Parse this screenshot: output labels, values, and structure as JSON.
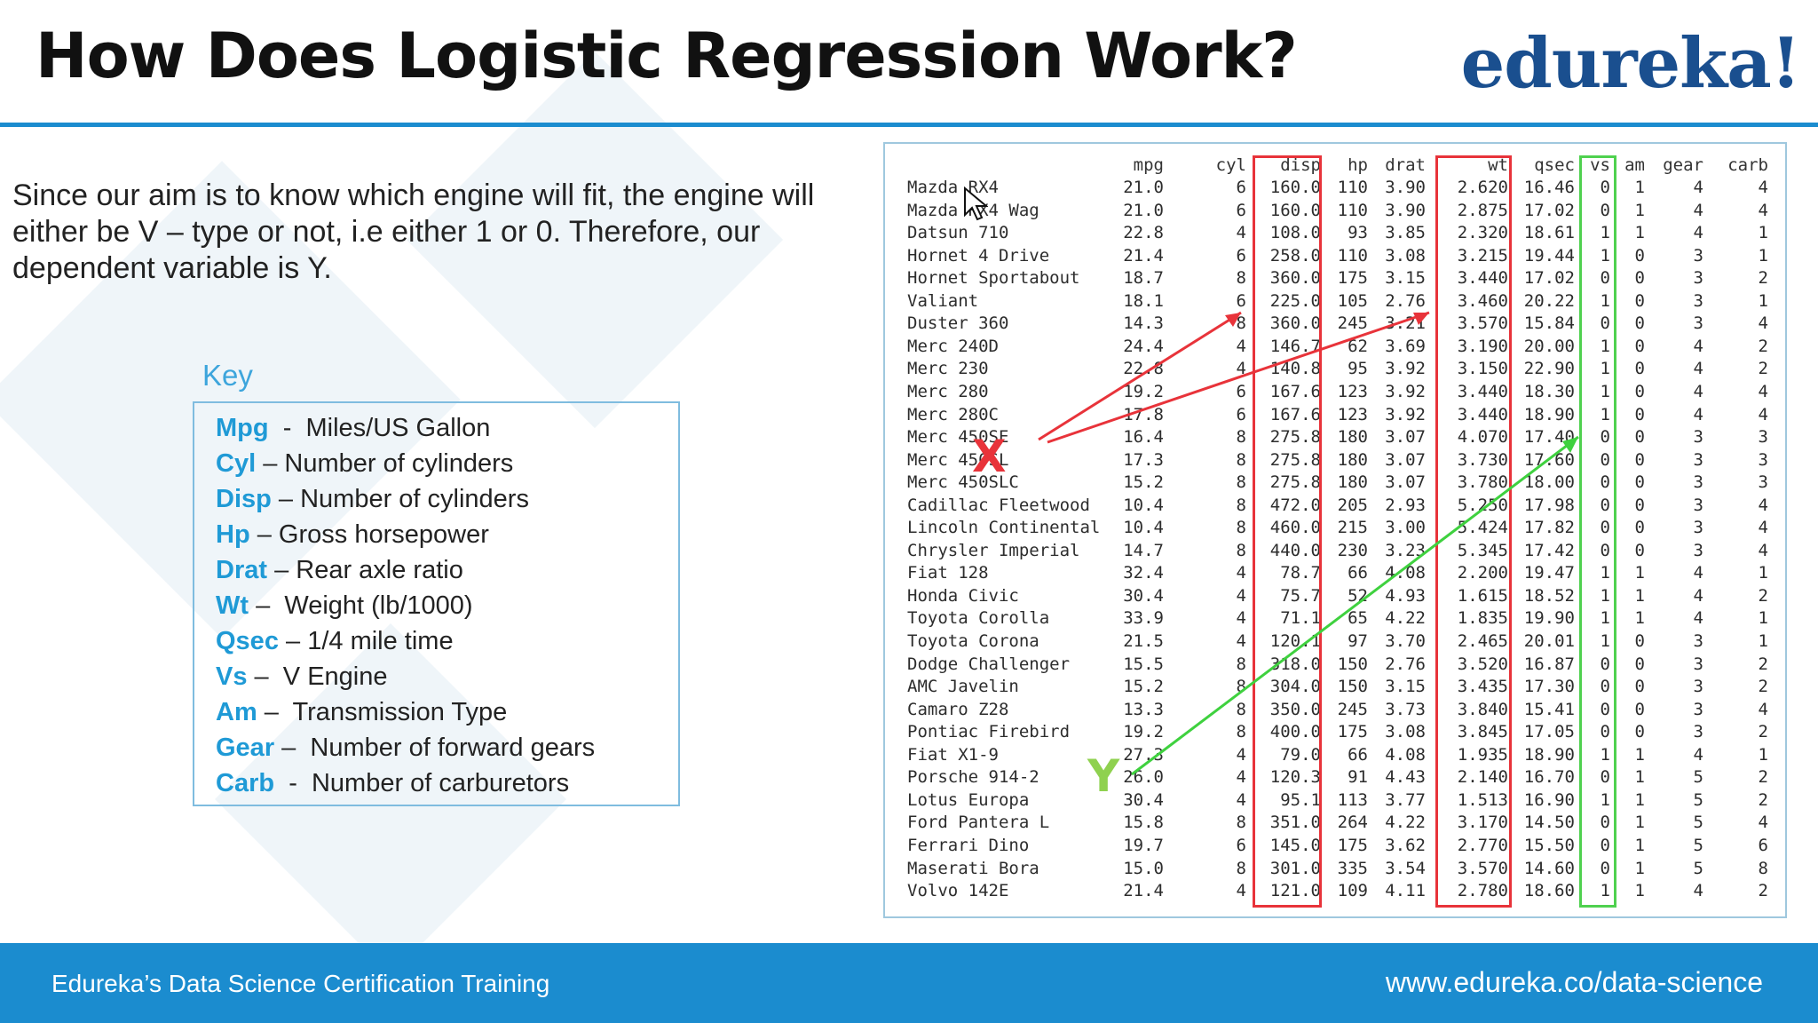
{
  "slide": {
    "title": "How Does Logistic Regression Work?",
    "logo": "edureka!",
    "intro": "Since our aim is to know which engine will fit, the engine will either be V – type or not, i.e either 1 or 0. Therefore, our dependent variable is Y.",
    "key_heading": "Key"
  },
  "key_items": [
    {
      "term": "Mpg",
      "sep": "  -  ",
      "desc": "Miles/US Gallon"
    },
    {
      "term": "Cyl",
      "sep": " – ",
      "desc": "Number of cylinders"
    },
    {
      "term": "Disp",
      "sep": " – ",
      "desc": "Number of cylinders"
    },
    {
      "term": "Hp",
      "sep": " – ",
      "desc": "Gross horsepower"
    },
    {
      "term": "Drat",
      "sep": " – ",
      "desc": "Rear axle ratio"
    },
    {
      "term": "Wt",
      "sep": " –  ",
      "desc": "Weight (lb/1000)"
    },
    {
      "term": "Qsec",
      "sep": " – ",
      "desc": "1/4 mile time"
    },
    {
      "term": "Vs",
      "sep": " –  ",
      "desc": "V Engine"
    },
    {
      "term": "Am",
      "sep": " –  ",
      "desc": "Transmission Type"
    },
    {
      "term": "Gear",
      "sep": " –  ",
      "desc": "Number of forward gears"
    },
    {
      "term": "Carb",
      "sep": "  -  ",
      "desc": "Number of carburetors"
    }
  ],
  "dataset": {
    "headers": [
      "mpg",
      "cyl",
      "disp",
      "hp",
      "drat",
      "wt",
      "qsec",
      "vs",
      "am",
      "gear",
      "carb"
    ],
    "rows": [
      [
        "Mazda RX4",
        "21.0",
        "6",
        "160.0",
        "110",
        "3.90",
        "2.620",
        "16.46",
        "0",
        "1",
        "4",
        "4"
      ],
      [
        "Mazda RX4 Wag",
        "21.0",
        "6",
        "160.0",
        "110",
        "3.90",
        "2.875",
        "17.02",
        "0",
        "1",
        "4",
        "4"
      ],
      [
        "Datsun 710",
        "22.8",
        "4",
        "108.0",
        "93",
        "3.85",
        "2.320",
        "18.61",
        "1",
        "1",
        "4",
        "1"
      ],
      [
        "Hornet 4 Drive",
        "21.4",
        "6",
        "258.0",
        "110",
        "3.08",
        "3.215",
        "19.44",
        "1",
        "0",
        "3",
        "1"
      ],
      [
        "Hornet Sportabout",
        "18.7",
        "8",
        "360.0",
        "175",
        "3.15",
        "3.440",
        "17.02",
        "0",
        "0",
        "3",
        "2"
      ],
      [
        "Valiant",
        "18.1",
        "6",
        "225.0",
        "105",
        "2.76",
        "3.460",
        "20.22",
        "1",
        "0",
        "3",
        "1"
      ],
      [
        "Duster 360",
        "14.3",
        "8",
        "360.0",
        "245",
        "3.21",
        "3.570",
        "15.84",
        "0",
        "0",
        "3",
        "4"
      ],
      [
        "Merc 240D",
        "24.4",
        "4",
        "146.7",
        "62",
        "3.69",
        "3.190",
        "20.00",
        "1",
        "0",
        "4",
        "2"
      ],
      [
        "Merc 230",
        "22.8",
        "4",
        "140.8",
        "95",
        "3.92",
        "3.150",
        "22.90",
        "1",
        "0",
        "4",
        "2"
      ],
      [
        "Merc 280",
        "19.2",
        "6",
        "167.6",
        "123",
        "3.92",
        "3.440",
        "18.30",
        "1",
        "0",
        "4",
        "4"
      ],
      [
        "Merc 280C",
        "17.8",
        "6",
        "167.6",
        "123",
        "3.92",
        "3.440",
        "18.90",
        "1",
        "0",
        "4",
        "4"
      ],
      [
        "Merc 450SE",
        "16.4",
        "8",
        "275.8",
        "180",
        "3.07",
        "4.070",
        "17.40",
        "0",
        "0",
        "3",
        "3"
      ],
      [
        "Merc 450SL",
        "17.3",
        "8",
        "275.8",
        "180",
        "3.07",
        "3.730",
        "17.60",
        "0",
        "0",
        "3",
        "3"
      ],
      [
        "Merc 450SLC",
        "15.2",
        "8",
        "275.8",
        "180",
        "3.07",
        "3.780",
        "18.00",
        "0",
        "0",
        "3",
        "3"
      ],
      [
        "Cadillac Fleetwood",
        "10.4",
        "8",
        "472.0",
        "205",
        "2.93",
        "5.250",
        "17.98",
        "0",
        "0",
        "3",
        "4"
      ],
      [
        "Lincoln Continental",
        "10.4",
        "8",
        "460.0",
        "215",
        "3.00",
        "5.424",
        "17.82",
        "0",
        "0",
        "3",
        "4"
      ],
      [
        "Chrysler Imperial",
        "14.7",
        "8",
        "440.0",
        "230",
        "3.23",
        "5.345",
        "17.42",
        "0",
        "0",
        "3",
        "4"
      ],
      [
        "Fiat 128",
        "32.4",
        "4",
        "78.7",
        "66",
        "4.08",
        "2.200",
        "19.47",
        "1",
        "1",
        "4",
        "1"
      ],
      [
        "Honda Civic",
        "30.4",
        "4",
        "75.7",
        "52",
        "4.93",
        "1.615",
        "18.52",
        "1",
        "1",
        "4",
        "2"
      ],
      [
        "Toyota Corolla",
        "33.9",
        "4",
        "71.1",
        "65",
        "4.22",
        "1.835",
        "19.90",
        "1",
        "1",
        "4",
        "1"
      ],
      [
        "Toyota Corona",
        "21.5",
        "4",
        "120.1",
        "97",
        "3.70",
        "2.465",
        "20.01",
        "1",
        "0",
        "3",
        "1"
      ],
      [
        "Dodge Challenger",
        "15.5",
        "8",
        "318.0",
        "150",
        "2.76",
        "3.520",
        "16.87",
        "0",
        "0",
        "3",
        "2"
      ],
      [
        "AMC Javelin",
        "15.2",
        "8",
        "304.0",
        "150",
        "3.15",
        "3.435",
        "17.30",
        "0",
        "0",
        "3",
        "2"
      ],
      [
        "Camaro Z28",
        "13.3",
        "8",
        "350.0",
        "245",
        "3.73",
        "3.840",
        "15.41",
        "0",
        "0",
        "3",
        "4"
      ],
      [
        "Pontiac Firebird",
        "19.2",
        "8",
        "400.0",
        "175",
        "3.08",
        "3.845",
        "17.05",
        "0",
        "0",
        "3",
        "2"
      ],
      [
        "Fiat X1-9",
        "27.3",
        "4",
        "79.0",
        "66",
        "4.08",
        "1.935",
        "18.90",
        "1",
        "1",
        "4",
        "1"
      ],
      [
        "Porsche 914-2",
        "26.0",
        "4",
        "120.3",
        "91",
        "4.43",
        "2.140",
        "16.70",
        "0",
        "1",
        "5",
        "2"
      ],
      [
        "Lotus Europa",
        "30.4",
        "4",
        "95.1",
        "113",
        "3.77",
        "1.513",
        "16.90",
        "1",
        "1",
        "5",
        "2"
      ],
      [
        "Ford Pantera L",
        "15.8",
        "8",
        "351.0",
        "264",
        "4.22",
        "3.170",
        "14.50",
        "0",
        "1",
        "5",
        "4"
      ],
      [
        "Ferrari Dino",
        "19.7",
        "6",
        "145.0",
        "175",
        "3.62",
        "2.770",
        "15.50",
        "0",
        "1",
        "5",
        "6"
      ],
      [
        "Maserati Bora",
        "15.0",
        "8",
        "301.0",
        "335",
        "3.54",
        "3.570",
        "14.60",
        "0",
        "1",
        "5",
        "8"
      ],
      [
        "Volvo 142E",
        "21.4",
        "4",
        "121.0",
        "109",
        "4.11",
        "2.780",
        "18.60",
        "1",
        "1",
        "4",
        "2"
      ]
    ]
  },
  "annotations": {
    "x_label": "X",
    "y_label": "Y",
    "x_color": "#e8333a",
    "y_color": "#8fd14f",
    "x_columns": [
      "disp",
      "wt"
    ],
    "y_column": "vs"
  },
  "footer": {
    "left": "Edureka’s Data Science Certification Training",
    "right": "www.edureka.co/data-science"
  },
  "colors": {
    "accent_blue": "#1b8ccf",
    "key_term": "#1f9ad6",
    "logo_navy": "#1a4f8f",
    "highlight_red": "#e8333a",
    "highlight_green": "#4fd14f"
  },
  "icons": {
    "cursor": "mouse-pointer-icon"
  }
}
